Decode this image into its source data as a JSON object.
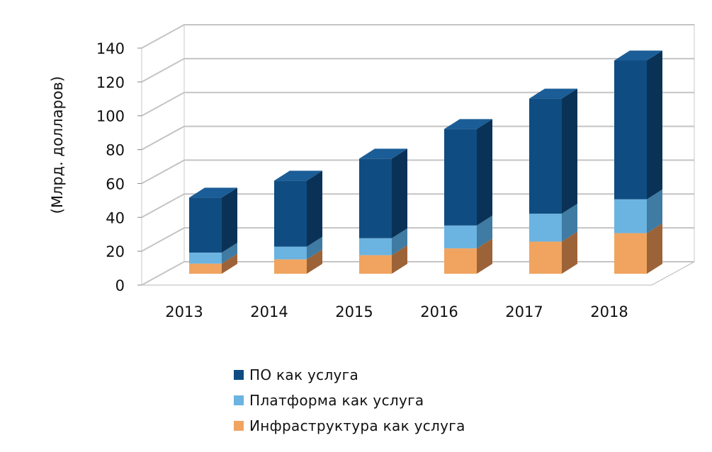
{
  "chart_data": {
    "type": "bar",
    "stacked": true,
    "style": "3d",
    "title": "",
    "xlabel": "",
    "ylabel": "(Млрд. долларов)",
    "ylim": [
      0,
      140
    ],
    "yticks": [
      0,
      20,
      40,
      60,
      80,
      100,
      120,
      140
    ],
    "grid": true,
    "legend_position": "bottom",
    "categories": [
      "2013",
      "2014",
      "2015",
      "2016",
      "2017",
      "2018"
    ],
    "series": [
      {
        "name": "Инфраструктура как услуга",
        "values": [
          6,
          8.5,
          11,
          15,
          19,
          24
        ],
        "color": "#F0A45F",
        "side": "#9C6338",
        "top": "#F6C797"
      },
      {
        "name": "Платформа как услуга",
        "values": [
          6.5,
          7.5,
          10,
          13.5,
          16.5,
          20
        ],
        "color": "#6BB3E0",
        "side": "#3F7BA3",
        "top": "#9ED0EF"
      },
      {
        "name": "ПО как услуга",
        "values": [
          32.5,
          39,
          47,
          57,
          68,
          82
        ],
        "color": "#0F4C81",
        "side": "#0A3257",
        "top": "#1B5D96"
      }
    ]
  },
  "legend": {
    "items": [
      {
        "label": "ПО как услуга",
        "color": "#0F4C81"
      },
      {
        "label": "Платформа как услуга",
        "color": "#6BB3E0"
      },
      {
        "label": "Инфраструктура как услуга",
        "color": "#F0A45F"
      }
    ]
  }
}
